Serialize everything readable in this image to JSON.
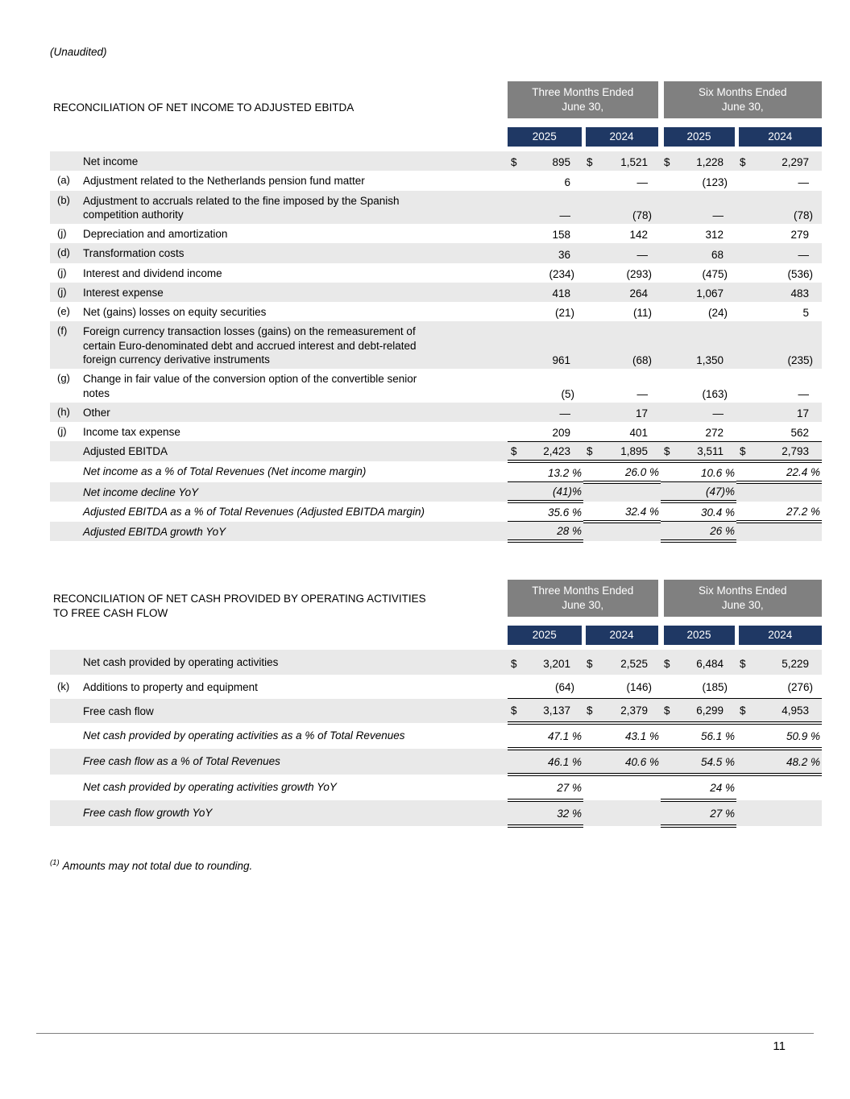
{
  "page": {
    "unaudited": "(Unaudited)",
    "footnote": {
      "sup": "(1)",
      "text": "Amounts may not total due to rounding."
    },
    "page_number": "11"
  },
  "colors": {
    "group_header_bg": "#808080",
    "year_header_bg": "#1F3864",
    "row_shade": "#E9E9E9",
    "text": "#000000"
  },
  "tables": [
    {
      "title": "RECONCILIATION OF NET INCOME TO ADJUSTED EBITDA",
      "groups": [
        "Three Months Ended\nJune 30,",
        "Six Months Ended\nJune 30,"
      ],
      "years": [
        "2025",
        "2024",
        "2025",
        "2024"
      ],
      "rows": [
        {
          "note": "",
          "label": "Net income",
          "italic": false,
          "shaded": true,
          "cells": [
            {
              "cur": "$",
              "val": "895",
              "b": ""
            },
            {
              "cur": "$",
              "val": "1,521",
              "b": ""
            },
            {
              "cur": "$",
              "val": "1,228",
              "b": ""
            },
            {
              "cur": "$",
              "val": "2,297",
              "b": ""
            }
          ]
        },
        {
          "note": "(a)",
          "label": "Adjustment related to the Netherlands pension fund matter",
          "italic": false,
          "shaded": false,
          "cells": [
            {
              "cur": "",
              "val": "6",
              "b": ""
            },
            {
              "cur": "",
              "val": "—",
              "b": ""
            },
            {
              "cur": "",
              "val": "(123)",
              "b": ""
            },
            {
              "cur": "",
              "val": "—",
              "b": ""
            }
          ]
        },
        {
          "note": "(b)",
          "label": "Adjustment to accruals related to the fine imposed by the Spanish\ncompetition authority",
          "italic": false,
          "shaded": true,
          "cells": [
            {
              "cur": "",
              "val": "—",
              "b": ""
            },
            {
              "cur": "",
              "val": "(78)",
              "b": ""
            },
            {
              "cur": "",
              "val": "—",
              "b": ""
            },
            {
              "cur": "",
              "val": "(78)",
              "b": ""
            }
          ]
        },
        {
          "note": "(j)",
          "label": "Depreciation and amortization",
          "italic": false,
          "shaded": false,
          "cells": [
            {
              "cur": "",
              "val": "158",
              "b": ""
            },
            {
              "cur": "",
              "val": "142",
              "b": ""
            },
            {
              "cur": "",
              "val": "312",
              "b": ""
            },
            {
              "cur": "",
              "val": "279",
              "b": ""
            }
          ]
        },
        {
          "note": "(d)",
          "label": "Transformation costs",
          "italic": false,
          "shaded": true,
          "cells": [
            {
              "cur": "",
              "val": "36",
              "b": ""
            },
            {
              "cur": "",
              "val": "—",
              "b": ""
            },
            {
              "cur": "",
              "val": "68",
              "b": ""
            },
            {
              "cur": "",
              "val": "—",
              "b": ""
            }
          ]
        },
        {
          "note": "(j)",
          "label": "Interest and dividend income",
          "italic": false,
          "shaded": false,
          "cells": [
            {
              "cur": "",
              "val": "(234)",
              "b": ""
            },
            {
              "cur": "",
              "val": "(293)",
              "b": ""
            },
            {
              "cur": "",
              "val": "(475)",
              "b": ""
            },
            {
              "cur": "",
              "val": "(536)",
              "b": ""
            }
          ]
        },
        {
          "note": "(j)",
          "label": "Interest expense",
          "italic": false,
          "shaded": true,
          "cells": [
            {
              "cur": "",
              "val": "418",
              "b": ""
            },
            {
              "cur": "",
              "val": "264",
              "b": ""
            },
            {
              "cur": "",
              "val": "1,067",
              "b": ""
            },
            {
              "cur": "",
              "val": "483",
              "b": ""
            }
          ]
        },
        {
          "note": "(e)",
          "label": "Net (gains) losses on equity securities",
          "italic": false,
          "shaded": false,
          "cells": [
            {
              "cur": "",
              "val": "(21)",
              "b": ""
            },
            {
              "cur": "",
              "val": "(11)",
              "b": ""
            },
            {
              "cur": "",
              "val": "(24)",
              "b": ""
            },
            {
              "cur": "",
              "val": "5",
              "b": ""
            }
          ]
        },
        {
          "note": "(f)",
          "label": "Foreign currency transaction losses (gains) on the remeasurement of\ncertain Euro-denominated debt and accrued interest and debt-related\nforeign currency derivative instruments",
          "italic": false,
          "shaded": true,
          "cells": [
            {
              "cur": "",
              "val": "961",
              "b": ""
            },
            {
              "cur": "",
              "val": "(68)",
              "b": ""
            },
            {
              "cur": "",
              "val": "1,350",
              "b": ""
            },
            {
              "cur": "",
              "val": "(235)",
              "b": ""
            }
          ]
        },
        {
          "note": "(g)",
          "label": "Change in fair value of the conversion option of the convertible senior\nnotes",
          "italic": false,
          "shaded": false,
          "cells": [
            {
              "cur": "",
              "val": "(5)",
              "b": ""
            },
            {
              "cur": "",
              "val": "—",
              "b": ""
            },
            {
              "cur": "",
              "val": "(163)",
              "b": ""
            },
            {
              "cur": "",
              "val": "—",
              "b": ""
            }
          ]
        },
        {
          "note": "(h)",
          "label": "Other",
          "italic": false,
          "shaded": true,
          "cells": [
            {
              "cur": "",
              "val": "—",
              "b": ""
            },
            {
              "cur": "",
              "val": "17",
              "b": ""
            },
            {
              "cur": "",
              "val": "—",
              "b": ""
            },
            {
              "cur": "",
              "val": "17",
              "b": ""
            }
          ]
        },
        {
          "note": "(j)",
          "label": "Income tax expense",
          "italic": false,
          "shaded": false,
          "cells": [
            {
              "cur": "",
              "val": "209",
              "b": "b1"
            },
            {
              "cur": "",
              "val": "401",
              "b": "b1"
            },
            {
              "cur": "",
              "val": "272",
              "b": "b1"
            },
            {
              "cur": "",
              "val": "562",
              "b": "b1"
            }
          ]
        },
        {
          "note": "",
          "label": "Adjusted EBITDA",
          "italic": false,
          "shaded": true,
          "cells": [
            {
              "cur": "$",
              "val": "2,423",
              "b": "b2"
            },
            {
              "cur": "$",
              "val": "1,895",
              "b": "b2"
            },
            {
              "cur": "$",
              "val": "3,511",
              "b": "b2"
            },
            {
              "cur": "$",
              "val": "2,793",
              "b": "b2"
            }
          ]
        },
        {
          "note": "",
          "label": "Net income as a % of Total Revenues (Net income margin)",
          "italic": true,
          "shaded": false,
          "cells": [
            {
              "cur": "",
              "val": "13.2 %",
              "b": "b1"
            },
            {
              "cur": "",
              "val": "26.0 %",
              "b": "b2"
            },
            {
              "cur": "",
              "val": "10.6 %",
              "b": "b1"
            },
            {
              "cur": "",
              "val": "22.4 %",
              "b": "b2"
            }
          ]
        },
        {
          "note": "",
          "label": "Net income decline YoY",
          "italic": true,
          "shaded": true,
          "cells": [
            {
              "cur": "",
              "val": "(41)%",
              "b": "b2"
            },
            {
              "cur": "",
              "val": "",
              "b": ""
            },
            {
              "cur": "",
              "val": "(47)%",
              "b": "b2"
            },
            {
              "cur": "",
              "val": "",
              "b": ""
            }
          ]
        },
        {
          "note": "",
          "label": "Adjusted EBITDA as a % of Total Revenues (Adjusted EBITDA margin)",
          "italic": true,
          "shaded": false,
          "cells": [
            {
              "cur": "",
              "val": "35.6 %",
              "b": "b1"
            },
            {
              "cur": "",
              "val": "32.4 %",
              "b": "b2"
            },
            {
              "cur": "",
              "val": "30.4 %",
              "b": "b1"
            },
            {
              "cur": "",
              "val": "27.2 %",
              "b": "b2"
            }
          ]
        },
        {
          "note": "",
          "label": "Adjusted EBITDA growth YoY",
          "italic": true,
          "shaded": true,
          "cells": [
            {
              "cur": "",
              "val": "28 %",
              "b": "b2"
            },
            {
              "cur": "",
              "val": "",
              "b": ""
            },
            {
              "cur": "",
              "val": "26 %",
              "b": "b2"
            },
            {
              "cur": "",
              "val": "",
              "b": ""
            }
          ]
        }
      ]
    },
    {
      "title": "RECONCILIATION OF NET CASH PROVIDED BY OPERATING ACTIVITIES\nTO FREE CASH FLOW",
      "groups": [
        "Three Months Ended\nJune 30,",
        "Six Months Ended\nJune 30,"
      ],
      "years": [
        "2025",
        "2024",
        "2025",
        "2024"
      ],
      "rows": [
        {
          "note": "",
          "label": "Net cash provided by operating activities",
          "italic": false,
          "shaded": true,
          "cells": [
            {
              "cur": "$",
              "val": "3,201",
              "b": ""
            },
            {
              "cur": "$",
              "val": "2,525",
              "b": ""
            },
            {
              "cur": "$",
              "val": "6,484",
              "b": ""
            },
            {
              "cur": "$",
              "val": "5,229",
              "b": ""
            }
          ]
        },
        {
          "note": "(k)",
          "label": "Additions to property and equipment",
          "italic": false,
          "shaded": false,
          "cells": [
            {
              "cur": "",
              "val": "(64)",
              "b": "b1"
            },
            {
              "cur": "",
              "val": "(146)",
              "b": "b1"
            },
            {
              "cur": "",
              "val": "(185)",
              "b": "b1"
            },
            {
              "cur": "",
              "val": "(276)",
              "b": "b1"
            }
          ]
        },
        {
          "note": "",
          "label": "Free cash flow",
          "italic": false,
          "shaded": true,
          "cells": [
            {
              "cur": "$",
              "val": "3,137",
              "b": "b2"
            },
            {
              "cur": "$",
              "val": "2,379",
              "b": "b2"
            },
            {
              "cur": "$",
              "val": "6,299",
              "b": "b2"
            },
            {
              "cur": "$",
              "val": "4,953",
              "b": "b2"
            }
          ]
        },
        {
          "note": "",
          "label": "Net cash provided by operating activities as a % of Total Revenues",
          "italic": true,
          "shaded": false,
          "cells": [
            {
              "cur": "",
              "val": "47.1 %",
              "b": "t1b2"
            },
            {
              "cur": "",
              "val": "43.1 %",
              "b": "t1b2"
            },
            {
              "cur": "",
              "val": "56.1 %",
              "b": "t1b2"
            },
            {
              "cur": "",
              "val": "50.9 %",
              "b": "t1b2"
            }
          ]
        },
        {
          "note": "",
          "label": "Free cash flow as a % of Total Revenues",
          "italic": true,
          "shaded": true,
          "cells": [
            {
              "cur": "",
              "val": "46.1 %",
              "b": "t1b2"
            },
            {
              "cur": "",
              "val": "40.6 %",
              "b": "t1b2"
            },
            {
              "cur": "",
              "val": "54.5 %",
              "b": "t1b2"
            },
            {
              "cur": "",
              "val": "48.2 %",
              "b": "t1b2"
            }
          ]
        },
        {
          "note": "",
          "label": "Net cash provided by operating activities growth YoY",
          "italic": true,
          "shaded": false,
          "cells": [
            {
              "cur": "",
              "val": "27 %",
              "b": "t1b2"
            },
            {
              "cur": "",
              "val": "",
              "b": ""
            },
            {
              "cur": "",
              "val": "24 %",
              "b": "t1b2"
            },
            {
              "cur": "",
              "val": "",
              "b": ""
            }
          ]
        },
        {
          "note": "",
          "label": "Free cash flow growth YoY",
          "italic": true,
          "shaded": true,
          "cells": [
            {
              "cur": "",
              "val": "32 %",
              "b": "t1b2"
            },
            {
              "cur": "",
              "val": "",
              "b": ""
            },
            {
              "cur": "",
              "val": "27 %",
              "b": "t1b2"
            },
            {
              "cur": "",
              "val": "",
              "b": ""
            }
          ]
        }
      ]
    }
  ]
}
